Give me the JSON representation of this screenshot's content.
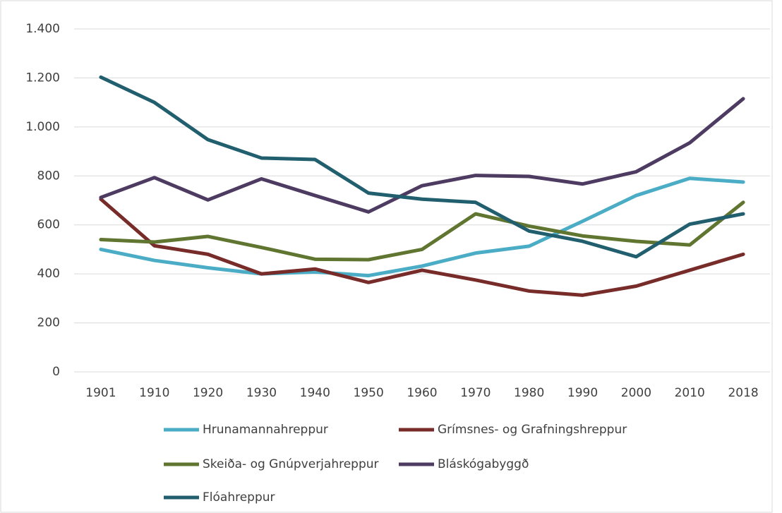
{
  "chart_data": {
    "type": "line",
    "categories": [
      "1901",
      "1910",
      "1920",
      "1930",
      "1940",
      "1950",
      "1960",
      "1970",
      "1980",
      "1990",
      "2000",
      "2010",
      "2018"
    ],
    "series": [
      {
        "name": "Hrunamannahreppur",
        "color": "#4bacc6",
        "values": [
          500,
          455,
          425,
          400,
          408,
          393,
          432,
          485,
          513,
          615,
          720,
          790,
          775
        ]
      },
      {
        "name": "Grímsnes- og Grafningshreppur",
        "color": "#772c2a",
        "values": [
          705,
          515,
          480,
          400,
          420,
          365,
          415,
          375,
          330,
          313,
          350,
          415,
          480
        ]
      },
      {
        "name": "Skeiða- og Gnúpverjahreppur",
        "color": "#5f7530",
        "values": [
          540,
          530,
          553,
          508,
          460,
          458,
          500,
          645,
          595,
          555,
          533,
          518,
          692
        ]
      },
      {
        "name": "Bláskógabyggð",
        "color": "#4d3b62",
        "values": [
          712,
          793,
          702,
          788,
          720,
          653,
          760,
          802,
          798,
          767,
          817,
          935,
          1115
        ]
      },
      {
        "name": "Flóahreppur",
        "color": "#215f6f",
        "values": [
          1203,
          1100,
          948,
          873,
          867,
          730,
          705,
          692,
          575,
          533,
          470,
          603,
          645
        ]
      }
    ],
    "ylim": [
      0,
      1400
    ],
    "yticks": [
      0,
      200,
      400,
      600,
      800,
      {
        "value": 1000,
        "label": "1.000"
      },
      {
        "value": 1200,
        "label": "1.200"
      },
      {
        "value": 1400,
        "label": "1.400"
      }
    ],
    "grid": true,
    "legend": "bottom"
  }
}
